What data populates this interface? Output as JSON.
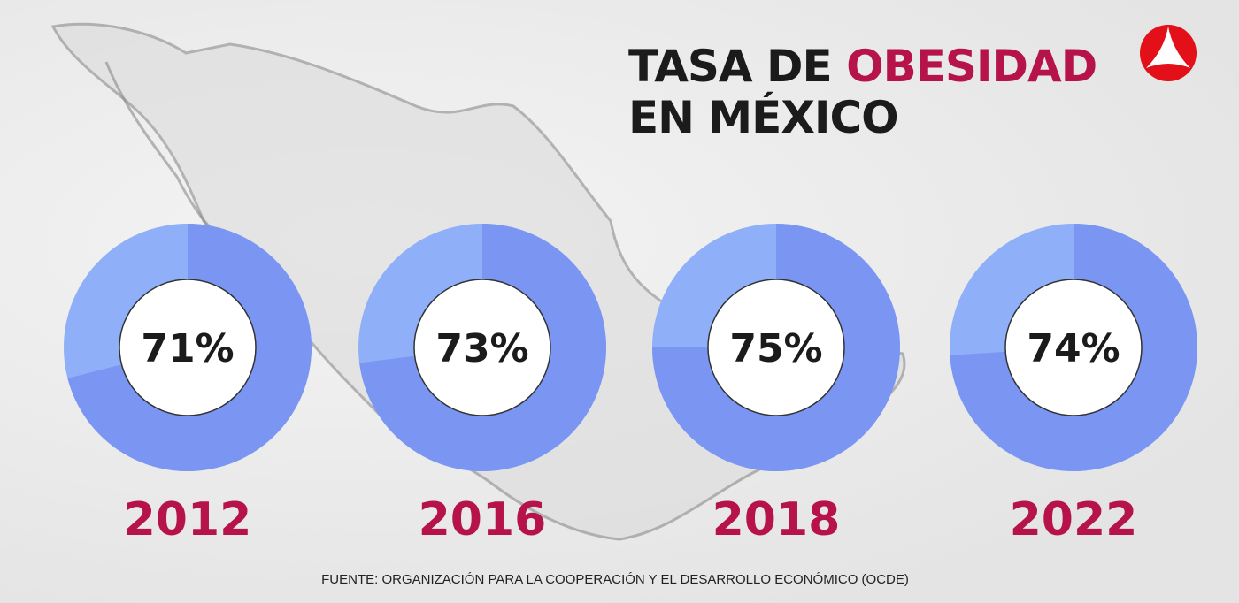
{
  "title": {
    "line1_prefix": "TASA DE ",
    "line1_highlight": "OBESIDAD",
    "line2": "EN MÉXICO"
  },
  "logo": {
    "icon": "red-circle-triangle-logo",
    "color": "#e3101a"
  },
  "colors": {
    "value_slice": "#7b96f2",
    "remainder_slice": "#8fb0f8",
    "year": "#b5134a"
  },
  "chart_data": {
    "type": "pie",
    "variant": "donut",
    "unit": "%",
    "categories": [
      "2012",
      "2016",
      "2018",
      "2022"
    ],
    "values": [
      71,
      73,
      75,
      74
    ],
    "labels": [
      "71%",
      "73%",
      "75%",
      "74%"
    ]
  },
  "source": "FUENTE: ORGANIZACIÓN PARA LA COOPERACIÓN Y EL DESARROLLO ECONÓMICO (OCDE)"
}
